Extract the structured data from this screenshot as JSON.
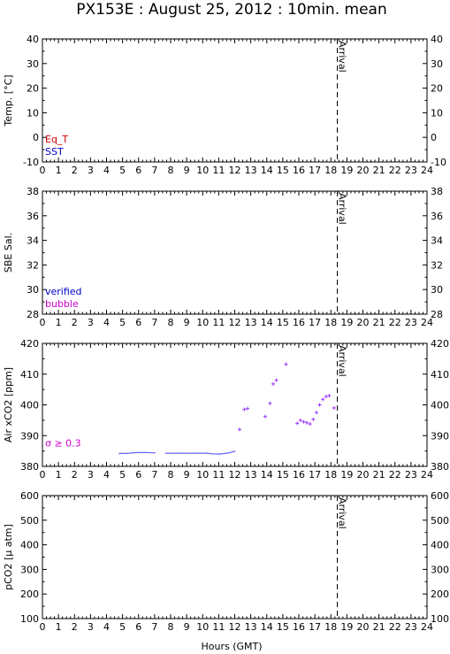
{
  "title": "PX153E : August 25, 2012 : 10min. mean",
  "xlabel": "Hours (GMT)",
  "arrival_label": "Arrival",
  "colors": {
    "eq_t": "#cc0000",
    "sst": "#0000cc",
    "verified": "#0000cc",
    "bubble": "#cc00cc",
    "xco2_points": "#9933ff",
    "xco2_line": "#6666ff",
    "sigma": "#cc00cc"
  },
  "chart_data": [
    {
      "type": "line",
      "ylabel": "Temp. [°C]",
      "xlim": [
        0,
        24
      ],
      "ylim": [
        -10,
        40
      ],
      "x_ticks": [
        0,
        1,
        2,
        3,
        4,
        5,
        6,
        7,
        8,
        9,
        10,
        11,
        12,
        13,
        14,
        15,
        16,
        17,
        18,
        19,
        20,
        21,
        22,
        23,
        24
      ],
      "y_ticks": [
        -10,
        0,
        10,
        20,
        30,
        40
      ],
      "arrival_x": 18.4,
      "legend": [
        {
          "label": "Eq_T",
          "color_key": "eq_t"
        },
        {
          "label": "SST",
          "color_key": "sst"
        }
      ],
      "series": []
    },
    {
      "type": "line",
      "ylabel": "SBE Sal.",
      "xlim": [
        0,
        24
      ],
      "ylim": [
        28,
        38
      ],
      "x_ticks": [
        0,
        1,
        2,
        3,
        4,
        5,
        6,
        7,
        8,
        9,
        10,
        11,
        12,
        13,
        14,
        15,
        16,
        17,
        18,
        19,
        20,
        21,
        22,
        23,
        24
      ],
      "y_ticks": [
        28,
        30,
        32,
        34,
        36,
        38
      ],
      "arrival_x": 18.4,
      "legend": [
        {
          "label": "verified",
          "color_key": "verified"
        },
        {
          "label": "bubble",
          "color_key": "bubble"
        }
      ],
      "series": []
    },
    {
      "type": "scatter",
      "ylabel": "Air xCO2 [ppm]",
      "xlim": [
        0,
        24
      ],
      "ylim": [
        380,
        420
      ],
      "x_ticks": [
        0,
        1,
        2,
        3,
        4,
        5,
        6,
        7,
        8,
        9,
        10,
        11,
        12,
        13,
        14,
        15,
        16,
        17,
        18,
        19,
        20,
        21,
        22,
        23,
        24
      ],
      "y_ticks": [
        380,
        390,
        400,
        410,
        420
      ],
      "arrival_x": 18.4,
      "annotation": "σ ≥ 0.3",
      "series": [
        {
          "style": "line",
          "x": [
            4.8,
            5.3,
            5.6,
            6.0,
            6.5,
            7.0
          ],
          "y": [
            384.2,
            384.2,
            384.4,
            384.5,
            384.5,
            384.4
          ]
        },
        {
          "style": "line",
          "x": [
            7.7,
            8.5,
            9.5,
            10.3,
            10.6,
            11.0,
            11.4,
            11.7,
            12.0
          ],
          "y": [
            384.3,
            384.3,
            384.3,
            384.3,
            384.1,
            384.0,
            384.2,
            384.5,
            384.9
          ]
        },
        {
          "style": "points",
          "x": [
            12.3,
            12.6,
            12.8,
            13.9,
            14.2,
            14.4,
            14.6,
            15.2,
            15.9,
            16.1,
            16.3,
            16.5,
            16.7,
            16.9,
            17.1,
            17.3,
            17.5,
            17.7,
            17.9,
            18.2
          ],
          "y": [
            392.0,
            398.5,
            398.8,
            396.2,
            400.5,
            406.8,
            408.0,
            413.2,
            394.0,
            395.0,
            394.5,
            394.2,
            393.8,
            395.3,
            397.5,
            400.0,
            401.8,
            402.7,
            403.0,
            399.0
          ]
        }
      ]
    },
    {
      "type": "line",
      "ylabel": "pCO2 [μ atm]",
      "xlim": [
        0,
        24
      ],
      "ylim": [
        100,
        600
      ],
      "x_ticks": [
        0,
        1,
        2,
        3,
        4,
        5,
        6,
        7,
        8,
        9,
        10,
        11,
        12,
        13,
        14,
        15,
        16,
        17,
        18,
        19,
        20,
        21,
        22,
        23,
        24
      ],
      "y_ticks": [
        100,
        200,
        300,
        400,
        500,
        600
      ],
      "arrival_x": 18.4,
      "series": []
    }
  ]
}
